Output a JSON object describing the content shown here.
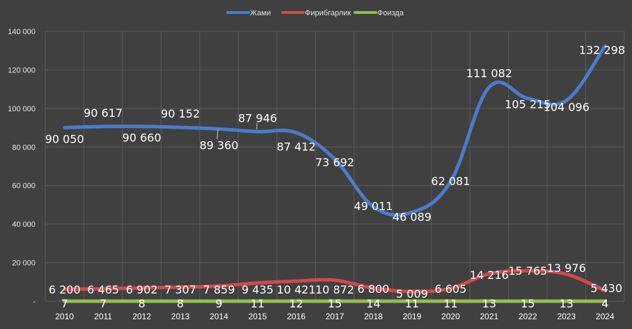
{
  "chart_data": {
    "type": "line",
    "title": "",
    "xlabel": "",
    "ylabel": "",
    "x": [
      "2010",
      "2011",
      "2012",
      "2013",
      "2014",
      "2015",
      "2016",
      "2017",
      "2018",
      "2019",
      "2020",
      "2021",
      "2022",
      "2023",
      "2024"
    ],
    "ylim": [
      0,
      140000
    ],
    "y_ticks": [
      "-",
      "20 000",
      "40 000",
      "60 000",
      "80 000",
      "100 000",
      "120 000",
      "140 000"
    ],
    "grid": true,
    "legend_position": "top",
    "series": [
      {
        "name": "Жами",
        "color": "#4a7ccc",
        "values": [
          90050,
          90617,
          90660,
          90152,
          89360,
          87946,
          87412,
          73692,
          49011,
          46089,
          62081,
          111082,
          105215,
          104096,
          132298
        ],
        "labels": [
          "90 050",
          "90 617",
          "90 660",
          "90 152",
          "89 360",
          "87 946",
          "87 412",
          "73 692",
          "49 011",
          "46 089",
          "62 081",
          "111 082",
          "105 215",
          "104 096",
          "132 298"
        ]
      },
      {
        "name": "Фирибгарлик",
        "color": "#d04a4a",
        "values": [
          6200,
          6465,
          6902,
          7307,
          7859,
          9435,
          10421,
          10872,
          6800,
          5009,
          6605,
          14216,
          15765,
          13976,
          5430
        ],
        "labels": [
          "6 200",
          "6 465",
          "6 902",
          "7 307",
          "7 859",
          "9 435",
          "10 421",
          "10 872",
          "6 800",
          "5 009",
          "6 605",
          "14 216",
          "15 765",
          "13 976",
          "5 430"
        ]
      },
      {
        "name": "Фоизда",
        "color": "#8fc24a",
        "values": [
          7,
          7,
          8,
          8,
          9,
          11,
          12,
          15,
          14,
          11,
          11,
          13,
          15,
          13,
          4
        ],
        "labels": [
          "7",
          "7",
          "8",
          "8",
          "9",
          "11",
          "12",
          "15",
          "14",
          "11",
          "11",
          "13",
          "15",
          "13",
          "4"
        ]
      }
    ]
  }
}
